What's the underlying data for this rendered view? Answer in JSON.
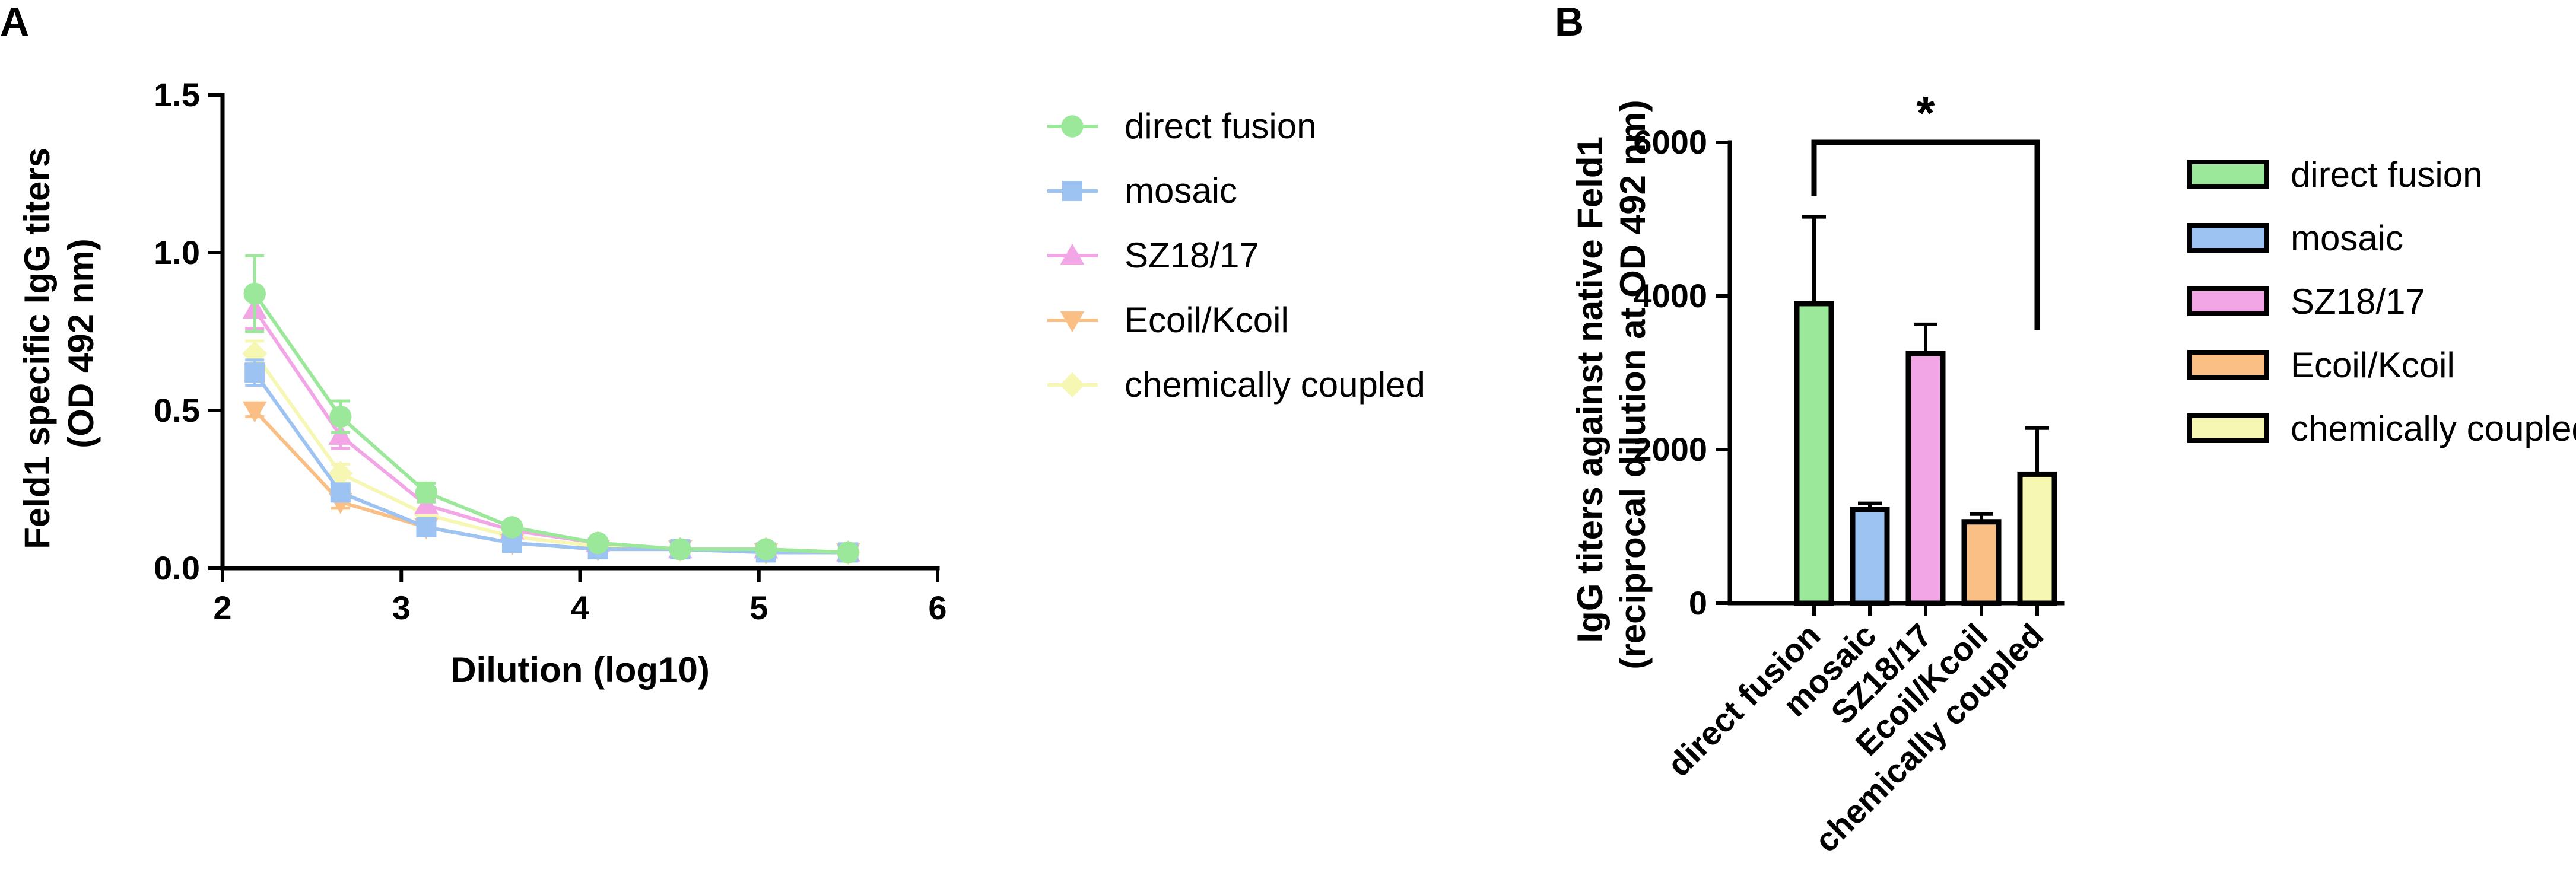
{
  "panels": {
    "a_label": "A",
    "b_label": "B"
  },
  "colors": {
    "direct fusion": "#9be89b",
    "mosaic": "#9cc3f2",
    "SZ18/17": "#f2a6e6",
    "Ecoil/Kcoil": "#f9bf84",
    "chemically coupled": "#f5f7b3"
  },
  "chart_data": [
    {
      "type": "line",
      "title": "",
      "xlabel": "Dilution (log10)",
      "ylabel_lines": [
        "Feld1 specific IgG titers",
        "(OD 492 nm)"
      ],
      "xlim": [
        2,
        6
      ],
      "ylim": [
        0,
        1.5
      ],
      "xticks": [
        "2",
        "3",
        "4",
        "5",
        "6"
      ],
      "yticks": [
        "0.0",
        "0.5",
        "1.0",
        "1.5"
      ],
      "x": [
        2.18,
        2.66,
        3.14,
        3.62,
        4.1,
        4.56,
        5.04,
        5.5
      ],
      "legend_position": "right",
      "series": [
        {
          "name": "direct fusion",
          "marker": "circle",
          "values": [
            0.87,
            0.48,
            0.24,
            0.13,
            0.08,
            0.06,
            0.06,
            0.05
          ],
          "errors": [
            0.12,
            0.05,
            0.03,
            0.01,
            0.01,
            0.01,
            0.01,
            0.01
          ]
        },
        {
          "name": "mosaic",
          "marker": "square",
          "values": [
            0.62,
            0.24,
            0.13,
            0.08,
            0.06,
            0.06,
            0.05,
            0.05
          ],
          "errors": [
            0.04,
            0.02,
            0.01,
            0.01,
            0.01,
            0.01,
            0.01,
            0.01
          ]
        },
        {
          "name": "SZ18/17",
          "marker": "triangle-up",
          "values": [
            0.82,
            0.42,
            0.2,
            0.12,
            0.08,
            0.06,
            0.06,
            0.05
          ],
          "errors": [
            0.06,
            0.04,
            0.02,
            0.01,
            0.01,
            0.01,
            0.01,
            0.01
          ]
        },
        {
          "name": "Ecoil/Kcoil",
          "marker": "triangle-down",
          "values": [
            0.5,
            0.21,
            0.13,
            0.08,
            0.06,
            0.06,
            0.05,
            0.05
          ],
          "errors": [
            0.02,
            0.02,
            0.01,
            0.01,
            0.01,
            0.01,
            0.01,
            0.01
          ]
        },
        {
          "name": "chemically coupled",
          "marker": "diamond",
          "values": [
            0.68,
            0.3,
            0.17,
            0.1,
            0.07,
            0.06,
            0.06,
            0.05
          ],
          "errors": [
            0.04,
            0.03,
            0.02,
            0.01,
            0.01,
            0.01,
            0.01,
            0.01
          ]
        }
      ]
    },
    {
      "type": "bar",
      "title": "",
      "xlabel": "",
      "ylabel_lines": [
        "IgG titers against native Feld1",
        "(reciprocal dilution at OD 492 nm)"
      ],
      "ylim": [
        0,
        6000
      ],
      "yticks": [
        "0",
        "2000",
        "4000",
        "6000"
      ],
      "categories": [
        "direct fusion",
        "mosaic",
        "SZ18/17",
        "Ecoil/Kcoil",
        "chemically coupled"
      ],
      "values": [
        3900,
        1220,
        3250,
        1060,
        1680
      ],
      "errors": [
        1130,
        80,
        380,
        100,
        600
      ],
      "significance": {
        "from": "direct fusion",
        "to": "chemically coupled",
        "label": "*"
      },
      "legend_position": "right"
    }
  ]
}
